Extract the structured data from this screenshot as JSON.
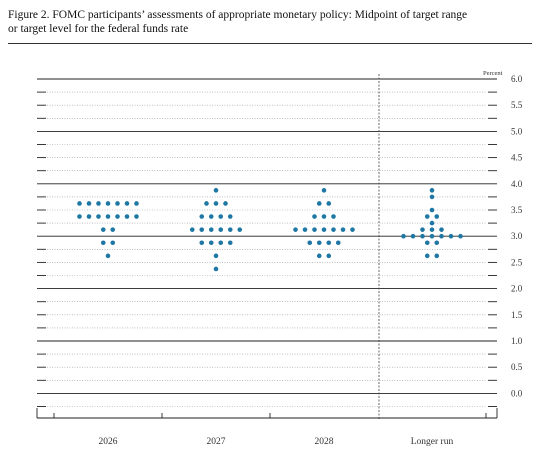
{
  "figure": {
    "title_line1": "Figure 2. FOMC participants’ assessments of appropriate monetary policy: Midpoint of target range",
    "title_line2": "or target level for the federal funds rate"
  },
  "chart_data": {
    "type": "scatter",
    "title": "Figure 2. FOMC participants’ assessments of appropriate monetary policy: Midpoint of target range or target level for the federal funds rate",
    "ylabel": "Percent",
    "ylim": [
      -0.25,
      6.0
    ],
    "yticks": [
      "6.0",
      "5.5",
      "5.0",
      "4.5",
      "4.0",
      "3.5",
      "3.0",
      "2.5",
      "2.0",
      "1.5",
      "1.0",
      "0.5",
      "0.0"
    ],
    "categories": [
      "2026",
      "2027",
      "2028",
      "Longer run"
    ],
    "dot_color": "#1f77a4",
    "dots": [
      {
        "category": "2026",
        "rows": [
          {
            "value": 3.625,
            "count": 7
          },
          {
            "value": 3.375,
            "count": 7
          },
          {
            "value": 3.125,
            "count": 2
          },
          {
            "value": 2.875,
            "count": 2
          },
          {
            "value": 2.625,
            "count": 1
          }
        ]
      },
      {
        "category": "2027",
        "rows": [
          {
            "value": 3.875,
            "count": 1
          },
          {
            "value": 3.625,
            "count": 3
          },
          {
            "value": 3.375,
            "count": 4
          },
          {
            "value": 3.125,
            "count": 6
          },
          {
            "value": 2.875,
            "count": 4
          },
          {
            "value": 2.625,
            "count": 1
          },
          {
            "value": 2.375,
            "count": 1
          }
        ]
      },
      {
        "category": "2028",
        "rows": [
          {
            "value": 3.875,
            "count": 1
          },
          {
            "value": 3.625,
            "count": 2
          },
          {
            "value": 3.375,
            "count": 3
          },
          {
            "value": 3.125,
            "count": 7
          },
          {
            "value": 2.875,
            "count": 4
          },
          {
            "value": 2.625,
            "count": 2
          }
        ]
      },
      {
        "category": "Longer run",
        "rows": [
          {
            "value": 3.875,
            "count": 1
          },
          {
            "value": 3.75,
            "count": 1
          },
          {
            "value": 3.5,
            "count": 1
          },
          {
            "value": 3.375,
            "count": 2
          },
          {
            "value": 3.25,
            "count": 1
          },
          {
            "value": 3.125,
            "count": 3
          },
          {
            "value": 3.0,
            "count": 7
          },
          {
            "value": 2.875,
            "count": 2
          },
          {
            "value": 2.625,
            "count": 2
          }
        ]
      }
    ],
    "grid": true,
    "legend": "none"
  }
}
